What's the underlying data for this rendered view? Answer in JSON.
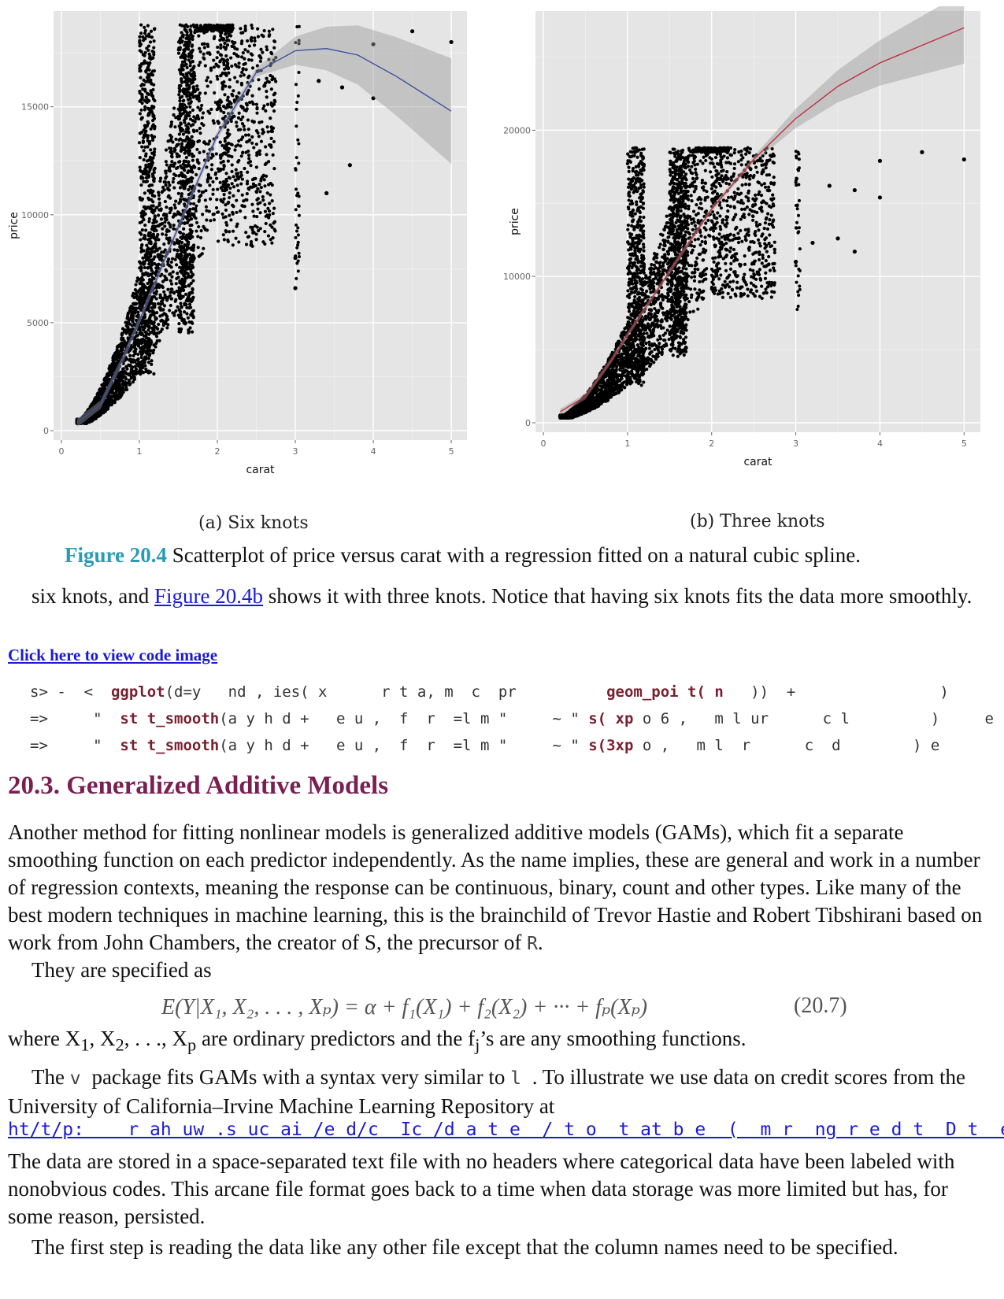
{
  "figure": {
    "subcaption_a": "(a) Six knots",
    "subcaption_b": "(b) Three knots",
    "caption_label": "Figure 20.4",
    "caption_text": " Scatterplot of price versus carat with a regression fitted on a natural cubic spline."
  },
  "chart_data": [
    {
      "type": "scatter",
      "title": "",
      "xlabel": "carat",
      "ylabel": "price",
      "xlim": [
        0,
        5
      ],
      "ylim": [
        0,
        19000
      ],
      "x_ticks": [
        "0",
        "1",
        "2",
        "3",
        "4",
        "5"
      ],
      "y_ticks": [
        "0",
        "5000",
        "10000",
        "15000"
      ],
      "y_tick_values": [
        0,
        5000,
        10000,
        15000
      ],
      "grid": true,
      "smooth_color": "#3b4fa0",
      "outliers": [
        [
          4.0,
          17900
        ],
        [
          4.5,
          18500
        ],
        [
          5.0,
          18000
        ],
        [
          3.3,
          16200
        ],
        [
          3.6,
          15900
        ],
        [
          4.0,
          15400
        ],
        [
          3.7,
          12300
        ],
        [
          3.4,
          11000
        ],
        [
          3.0,
          8000
        ],
        [
          3.0,
          6600
        ]
      ],
      "spline": [
        [
          0.2,
          350
        ],
        [
          0.5,
          1200
        ],
        [
          0.8,
          3400
        ],
        [
          1.0,
          5100
        ],
        [
          1.3,
          7700
        ],
        [
          1.6,
          10300
        ],
        [
          2.0,
          13700
        ],
        [
          2.5,
          16600
        ],
        [
          3.0,
          17600
        ],
        [
          3.4,
          17700
        ],
        [
          3.8,
          17400
        ],
        [
          4.3,
          16400
        ],
        [
          5.0,
          14800
        ]
      ]
    },
    {
      "type": "scatter",
      "title": "",
      "xlabel": "carat",
      "ylabel": "price",
      "xlim": [
        0,
        5
      ],
      "ylim": [
        0,
        27500
      ],
      "x_ticks": [
        "0",
        "1",
        "2",
        "3",
        "4",
        "5"
      ],
      "y_ticks": [
        "0",
        "10000",
        "20000"
      ],
      "y_tick_values": [
        0,
        10000,
        20000
      ],
      "grid": true,
      "smooth_color": "#c0303a",
      "outliers": [
        [
          4.0,
          17900
        ],
        [
          4.5,
          18500
        ],
        [
          5.0,
          18000
        ],
        [
          3.4,
          16200
        ],
        [
          3.7,
          15900
        ],
        [
          4.0,
          15400
        ],
        [
          3.2,
          12300
        ],
        [
          3.5,
          12600
        ],
        [
          3.7,
          11700
        ],
        [
          3.0,
          11000
        ]
      ],
      "spline": [
        [
          0.2,
          750
        ],
        [
          0.5,
          1800
        ],
        [
          0.8,
          4200
        ],
        [
          1.0,
          6000
        ],
        [
          1.3,
          8600
        ],
        [
          1.6,
          11200
        ],
        [
          2.0,
          14600
        ],
        [
          2.5,
          18000
        ],
        [
          3.0,
          20800
        ],
        [
          3.5,
          23000
        ],
        [
          4.0,
          24600
        ],
        [
          4.5,
          25800
        ],
        [
          5.0,
          27000
        ]
      ]
    }
  ],
  "text": {
    "p1_a": "six knots, and ",
    "p1_link": "Figure 20.4b",
    "p1_b": " shows it with three knots. Notice that having six knots fits the data more smoothly.",
    "code_link": "Click here to view code image",
    "code_line1_a": "s> -  <  ",
    "code_line1_kw1": "ggplot",
    "code_line1_b": "(d=y   nd , ies( x      r t a, m  c  pr          ",
    "code_line1_kw2": "geom_poi t( n",
    "code_line1_c": "   ))  +                )",
    "code_line2_a": "=>     \"  ",
    "code_line2_kw1": "st t_smooth",
    "code_line2_b": "(a y h d +   e u ,  f  r  =l m \"     ~ \" ",
    "code_line2_kw2": "s( xp",
    "code_line2_c": " o 6 ,   m l ur      c l         )     e",
    "code_line3_a": "=>     \"  ",
    "code_line3_kw1": "st t_smooth",
    "code_line3_b": "(a y h d +   e u ,  f  r  =l m \"     ~ \" ",
    "code_line3_kw2": "s(3xp",
    "code_line3_c": " o ,   m l  r      c  d        ) e",
    "heading": "20.3. Generalized Additive Models",
    "p2": "Another method for fitting nonlinear models is generalized additive models (GAMs), which fit a separate smoothing function on each predictor independently. As the name implies, these are general and work in a number of regression contexts, meaning the response can be continuous, binary, count and other types. Like many of the best modern techniques in machine learning, this is the brainchild of Trevor Hastie and Robert Tibshirani based on work from John Chambers, the creator of S, the precursor of ",
    "p2_code": "R",
    "p2_end": ".",
    "p3": "They are specified as",
    "equation": "E(Y|X₁, X₂, . . . , Xₚ) = α + f₁(X₁) + f₂(X₂) + ··· + fₚ(Xₚ)",
    "equation_number": "(20.7)",
    "p4_a": "where X",
    "p4_sub1": "1",
    "p4_b": ", X",
    "p4_sub2": "2",
    "p4_c": ", . . ., X",
    "p4_subp": "p",
    "p4_d": " are ordinary predictors and the f",
    "p4_subj": "j",
    "p4_e": "’s are any smoothing functions.",
    "p5_a": "The ",
    "p5_code1": "  v ",
    "p5_b": "package fits GAMs with a syntax very similar to ",
    "p5_code2": " l ",
    "p5_c": ". To illustrate we use data on credit scores from the University of California–Irvine Machine Learning Repository at",
    "url": "ht/t/p:    r ah uw .s uc ai /e d/c  Ic /d a t e  / t o  t at b e  (  m r  ng r e d t  D t  e i",
    "p6": "The data are stored in a space-separated text file with no headers where categorical data have been labeled with nonobvious codes. This arcane file format goes back to a time when data storage was more limited but has, for some reason, persisted.",
    "p7": "The first step is reading the data like any other file except that the column names need to be specified."
  }
}
